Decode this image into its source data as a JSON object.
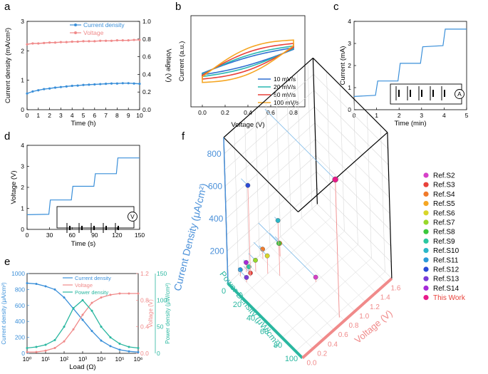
{
  "chart_data": [
    {
      "panel": "a",
      "type": "line",
      "x": [
        0,
        0.5,
        1,
        1.5,
        2,
        2.5,
        3,
        3.5,
        4,
        4.5,
        5,
        5.5,
        6,
        6.5,
        7,
        7.5,
        8,
        8.5,
        9,
        9.5,
        10
      ],
      "series": [
        {
          "name": "Current density",
          "axis": "left",
          "color": "#3a8fd9",
          "marker": "circle",
          "values": [
            0.55,
            0.62,
            0.66,
            0.7,
            0.72,
            0.75,
            0.77,
            0.79,
            0.81,
            0.82,
            0.84,
            0.85,
            0.86,
            0.87,
            0.88,
            0.89,
            0.89,
            0.9,
            0.9,
            0.89,
            0.88
          ]
        },
        {
          "name": "Voltage",
          "axis": "right",
          "color": "#f08a8a",
          "marker": "circle",
          "values": [
            0.74,
            0.75,
            0.75,
            0.755,
            0.76,
            0.76,
            0.765,
            0.765,
            0.77,
            0.77,
            0.775,
            0.775,
            0.775,
            0.78,
            0.78,
            0.78,
            0.785,
            0.785,
            0.785,
            0.79,
            0.79
          ]
        }
      ],
      "xlabel": "Time (h)",
      "ylabel": "Current density (mA/cm²)",
      "y2label": "Voltage (V)",
      "xlim": [
        0,
        10
      ],
      "ylim": [
        0,
        3
      ],
      "y2lim": [
        0,
        1
      ],
      "xticks": [
        "0",
        "1",
        "2",
        "3",
        "4",
        "5",
        "6",
        "7",
        "8",
        "9",
        "10"
      ],
      "yticks": [
        "0",
        "1",
        "2",
        "3"
      ],
      "y2ticks": [
        "0.0",
        "0.2",
        "0.4",
        "0.6",
        "0.8",
        "1.0"
      ]
    },
    {
      "panel": "b",
      "type": "line",
      "series": [
        {
          "name": "10 mV/s",
          "color": "#2e6fd1",
          "scale": 0.2
        },
        {
          "name": "20 mV/s",
          "color": "#2ab7b0",
          "scale": 0.3
        },
        {
          "name": "50 mV/s",
          "color": "#e8413a",
          "scale": 0.45
        },
        {
          "name": "100 mV/s",
          "color": "#f5a623",
          "scale": 0.65
        }
      ],
      "xlabel": "Voltage (V)",
      "ylabel": "Current (a.u.)",
      "xlim": [
        -0.1,
        0.9
      ],
      "xticks": [
        "0.0",
        "0.2",
        "0.4",
        "0.6",
        "0.8"
      ]
    },
    {
      "panel": "c",
      "type": "line",
      "color": "#3a8fd9",
      "x": [
        0,
        0.95,
        1.05,
        1.95,
        2.05,
        2.95,
        3.05,
        3.95,
        4.05,
        5
      ],
      "values": [
        0.6,
        0.65,
        1.3,
        1.3,
        2.1,
        2.1,
        2.85,
        2.9,
        3.65,
        3.65
      ],
      "xlabel": "Time (min)",
      "ylabel": "Current (mA)",
      "xlim": [
        0,
        5
      ],
      "ylim": [
        0,
        4
      ],
      "xticks": [
        "0",
        "1",
        "2",
        "3",
        "4",
        "5"
      ],
      "yticks": [
        "0",
        "1",
        "2",
        "3",
        "4"
      ],
      "circuit_label": "A"
    },
    {
      "panel": "d",
      "type": "line",
      "color": "#3a8fd9",
      "x": [
        0,
        29,
        31,
        59,
        61,
        89,
        91,
        119,
        121,
        150
      ],
      "values": [
        0.7,
        0.72,
        1.4,
        1.4,
        2.05,
        2.05,
        2.65,
        2.65,
        3.4,
        3.4
      ],
      "xlabel": "Time (s)",
      "ylabel": "Voltage (V)",
      "xlim": [
        0,
        150
      ],
      "ylim": [
        0,
        4
      ],
      "xticks": [
        "0",
        "30",
        "60",
        "90",
        "120",
        "150"
      ],
      "yticks": [
        "0",
        "1",
        "2",
        "3",
        "4"
      ],
      "circuit_label": "V"
    },
    {
      "panel": "e",
      "type": "line",
      "x_log10": [
        0,
        0.5,
        1,
        1.5,
        2,
        2.5,
        3,
        3.5,
        4,
        4.5,
        5,
        5.5,
        6
      ],
      "series": [
        {
          "name": "Current density",
          "axis": "left",
          "color": "#3a8fd9",
          "values": [
            880,
            870,
            840,
            800,
            700,
            560,
            420,
            280,
            160,
            90,
            45,
            25,
            15
          ]
        },
        {
          "name": "Voltage",
          "axis": "right",
          "color": "#f08a8a",
          "values": [
            0.02,
            0.02,
            0.04,
            0.08,
            0.18,
            0.36,
            0.58,
            0.76,
            0.84,
            0.88,
            0.9,
            0.9,
            0.9
          ]
        },
        {
          "name": "Power density",
          "axis": "right2",
          "color": "#2ab7a0",
          "values": [
            10,
            12,
            16,
            25,
            50,
            85,
            100,
            80,
            50,
            30,
            18,
            12,
            10
          ]
        }
      ],
      "xlabel": "Load (Ω)",
      "ylabel": "Current density (μA/cm²)",
      "y2label": "Voltage (V)",
      "y3label": "Power density (μW/cm²)",
      "ylim": [
        0,
        1000
      ],
      "y2lim": [
        0,
        1.2
      ],
      "y3lim": [
        0,
        150
      ],
      "xticks": [
        "10⁰",
        "10¹",
        "10²",
        "10³",
        "10⁴",
        "10⁵",
        "10⁶"
      ],
      "yticks": [
        "0",
        "200",
        "400",
        "600",
        "800",
        "1000"
      ],
      "y2ticks": [
        "0.0",
        "0.4",
        "0.8",
        "1.2"
      ],
      "y3ticks": [
        "0",
        "50",
        "100",
        "150"
      ]
    },
    {
      "panel": "f",
      "type": "scatter",
      "xlabel": "Power Density (μW/cm²)",
      "ylabel": "Voltage (V)",
      "zlabel": "Current Density (μA/cm²)",
      "xticks": [
        "0",
        "20",
        "40",
        "60",
        "80",
        "100"
      ],
      "yticks": [
        "0.0",
        "0.2",
        "0.4",
        "0.6",
        "0.8",
        "1.0",
        "1.2",
        "1.4",
        "1.6"
      ],
      "zticks": [
        "200",
        "400",
        "600",
        "800"
      ],
      "points": [
        {
          "name": "Ref.S2",
          "color": "#d640c8",
          "power": 60,
          "voltage": 0.9,
          "current": 30
        },
        {
          "name": "Ref.S3",
          "color": "#e8413a",
          "power": 10,
          "voltage": 0.3,
          "current": 20
        },
        {
          "name": "Ref.S4",
          "color": "#f07a2a",
          "power": 5,
          "voltage": 0.6,
          "current": 60
        },
        {
          "name": "Ref.S5",
          "color": "#f5a623",
          "power": 15,
          "voltage": 0.8,
          "current": 80
        },
        {
          "name": "Ref.S6",
          "color": "#d8d62a",
          "power": 20,
          "voltage": 0.5,
          "current": 110
        },
        {
          "name": "Ref.S7",
          "color": "#98d82a",
          "power": 10,
          "voltage": 0.4,
          "current": 70
        },
        {
          "name": "Ref.S8",
          "color": "#3ac83a",
          "power": 30,
          "voltage": 0.6,
          "current": 200
        },
        {
          "name": "Ref.S9",
          "color": "#2ac8a0",
          "power": 8,
          "voltage": 0.3,
          "current": 50
        },
        {
          "name": "Ref.S10",
          "color": "#2ab7c8",
          "power": 5,
          "voltage": 0.9,
          "current": 150
        },
        {
          "name": "Ref.S11",
          "color": "#2a9ad8",
          "power": 3,
          "voltage": 0.2,
          "current": 40
        },
        {
          "name": "Ref.S12",
          "color": "#2a4ad8",
          "power": 10,
          "voltage": 0.3,
          "current": 560
        },
        {
          "name": "Ref.S13",
          "color": "#7a3ad8",
          "power": 12,
          "voltage": 0.2,
          "current": 30
        },
        {
          "name": "Ref.S14",
          "color": "#a62ad8",
          "power": 4,
          "voltage": 0.3,
          "current": 60
        },
        {
          "name": "This Work",
          "color": "#e81a8a",
          "power": 104,
          "voltage": 0.78,
          "current": 850
        }
      ],
      "legend_highlight_color": "#e8413a"
    }
  ]
}
